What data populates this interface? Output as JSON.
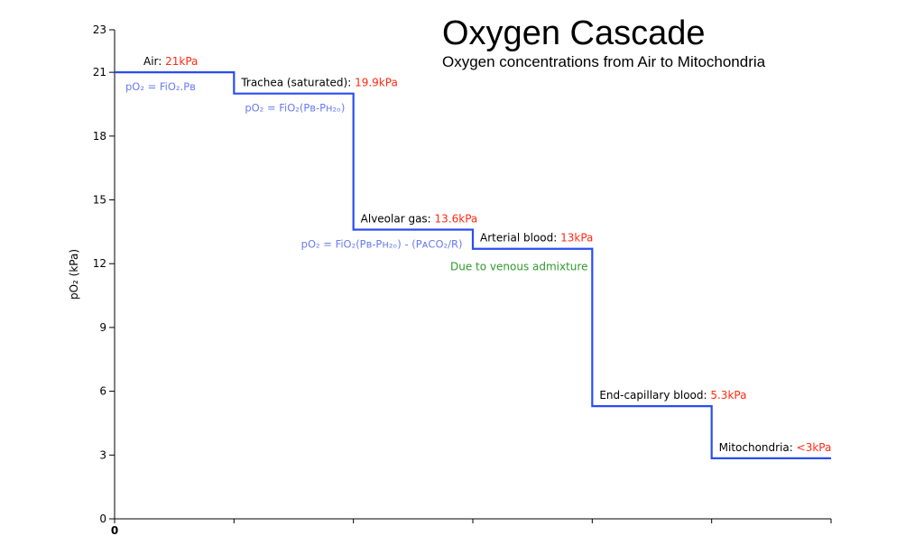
{
  "chart_data": {
    "type": "line",
    "title": "Oxygen Cascade",
    "subtitle": "Oxygen concentrations from Air to Mitochondria",
    "ylabel": "pO₂ (kPa)",
    "xlabel": "",
    "ylim": [
      0,
      23
    ],
    "xlim": [
      0,
      6
    ],
    "yticks": [
      0,
      3,
      6,
      9,
      12,
      15,
      18,
      21,
      23
    ],
    "xtick_labels": [
      "0"
    ],
    "grid": false,
    "line_color": "#2a4df0",
    "value_color": "#ff2a12",
    "formula_color": "#6a7cf0",
    "note_color": "#2e9a2e",
    "series": [
      {
        "steps": [
          {
            "x0": 0,
            "x1": 1,
            "y": 21,
            "label": "Air:",
            "value": "21kPa",
            "formula": "pO₂ = FiO₂.Pʙ"
          },
          {
            "x0": 1,
            "x1": 2,
            "y": 20,
            "label": "Trachea (saturated):",
            "value": "19.9kPa",
            "formula": "pO₂ = FiO₂(Pʙ-Pʜ₂ₒ)"
          },
          {
            "x0": 2,
            "x1": 3,
            "y": 13.6,
            "label": "Alveolar gas:",
            "value": "13.6kPa",
            "formula": "pO₂ = FiO₂(Pʙ-Pʜ₂ₒ) - (PᴀCO₂/R)"
          },
          {
            "x0": 3,
            "x1": 4,
            "y": 12.7,
            "label": "Arterial blood:",
            "value": "13kPa",
            "note": "Due to venous admixture"
          },
          {
            "x0": 4,
            "x1": 5,
            "y": 5.3,
            "label": "End-capillary blood:",
            "value": "5.3kPa"
          },
          {
            "x0": 5,
            "x1": 6,
            "y": 2.85,
            "label": "Mitochondria:",
            "value": "<3kPa"
          }
        ]
      }
    ]
  }
}
